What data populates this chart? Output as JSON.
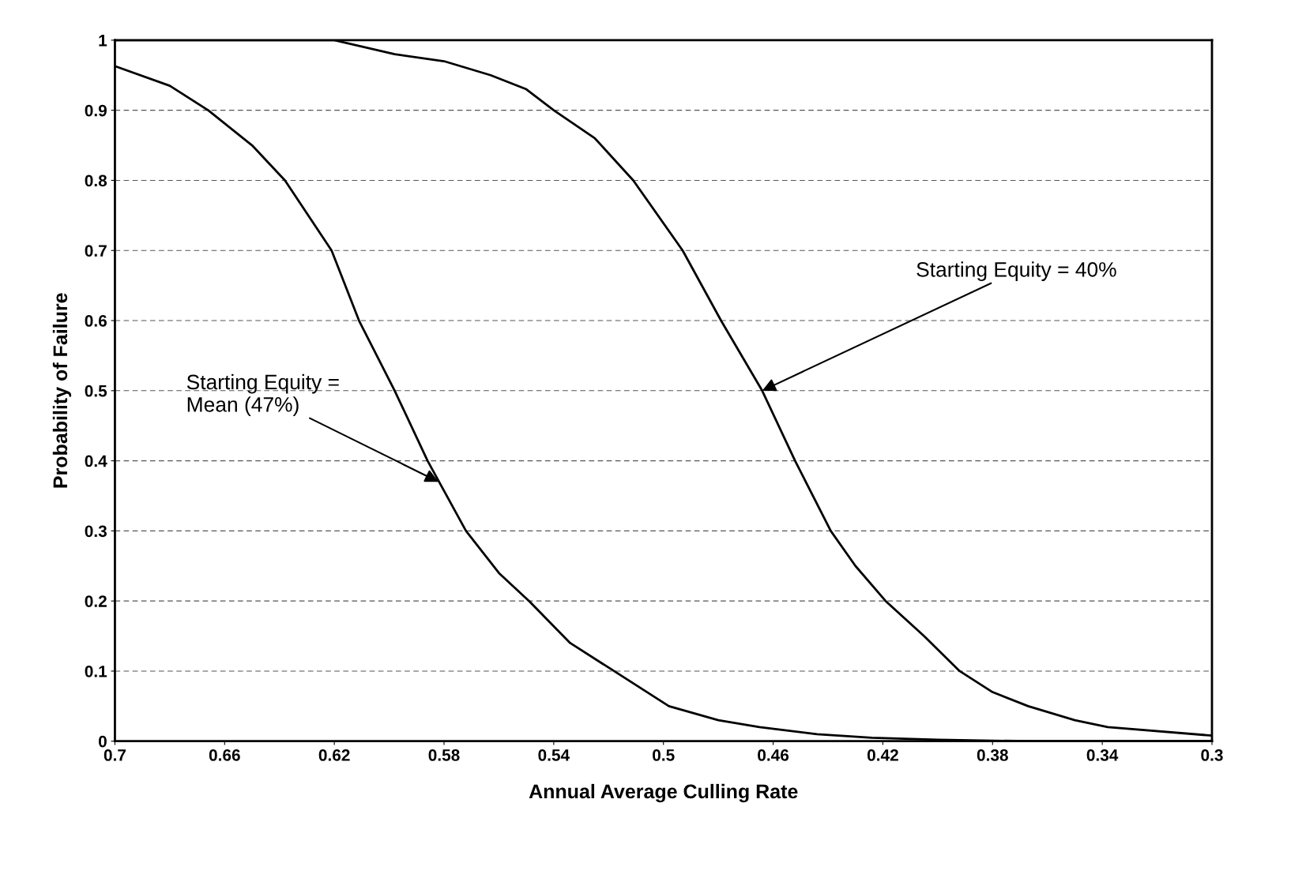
{
  "chart_data": {
    "type": "line",
    "xlabel": "Annual Average Culling Rate",
    "ylabel": "Probability of Failure",
    "xlim": [
      0.7,
      0.3
    ],
    "xticks": [
      0.7,
      0.66,
      0.62,
      0.58,
      0.54,
      0.5,
      0.46,
      0.42,
      0.38,
      0.34,
      0.3
    ],
    "ylim": [
      0,
      1
    ],
    "yticks": [
      0,
      0.1,
      0.2,
      0.3,
      0.4,
      0.5,
      0.6,
      0.7,
      0.8,
      0.9,
      1
    ],
    "grid": "y",
    "legend": false,
    "marker": "none",
    "line_style": "solid",
    "series": [
      {
        "color": "#000000",
        "x": [
          0.7,
          0.68,
          0.666,
          0.65,
          0.638,
          0.621,
          0.611,
          0.598,
          0.586,
          0.572,
          0.56,
          0.549,
          0.534,
          0.518,
          0.498,
          0.48,
          0.465,
          0.444,
          0.424,
          0.4,
          0.367,
          0.3
        ],
        "values": [
          0.963,
          0.935,
          0.9,
          0.85,
          0.8,
          0.7,
          0.6,
          0.5,
          0.4,
          0.3,
          0.24,
          0.2,
          0.14,
          0.1,
          0.05,
          0.03,
          0.02,
          0.01,
          0.005,
          0.002,
          0.0,
          0.0
        ]
      },
      {
        "color": "#000000",
        "x": [
          0.7,
          0.62,
          0.598,
          0.58,
          0.563,
          0.55,
          0.54,
          0.525,
          0.511,
          0.493,
          0.479,
          0.464,
          0.452,
          0.439,
          0.43,
          0.419,
          0.405,
          0.392,
          0.38,
          0.367,
          0.35,
          0.338,
          0.3
        ],
        "values": [
          1.0,
          1.0,
          0.98,
          0.97,
          0.95,
          0.93,
          0.9,
          0.86,
          0.8,
          0.7,
          0.6,
          0.5,
          0.4,
          0.3,
          0.25,
          0.2,
          0.15,
          0.1,
          0.07,
          0.05,
          0.03,
          0.02,
          0.008
        ]
      }
    ],
    "annotations": [
      {
        "text": "Starting Equity = 40%",
        "x": 0.464,
        "y": 0.5
      },
      {
        "text": "Starting Equity =\nMean (47%)",
        "x": 0.582,
        "y": 0.37
      }
    ]
  }
}
